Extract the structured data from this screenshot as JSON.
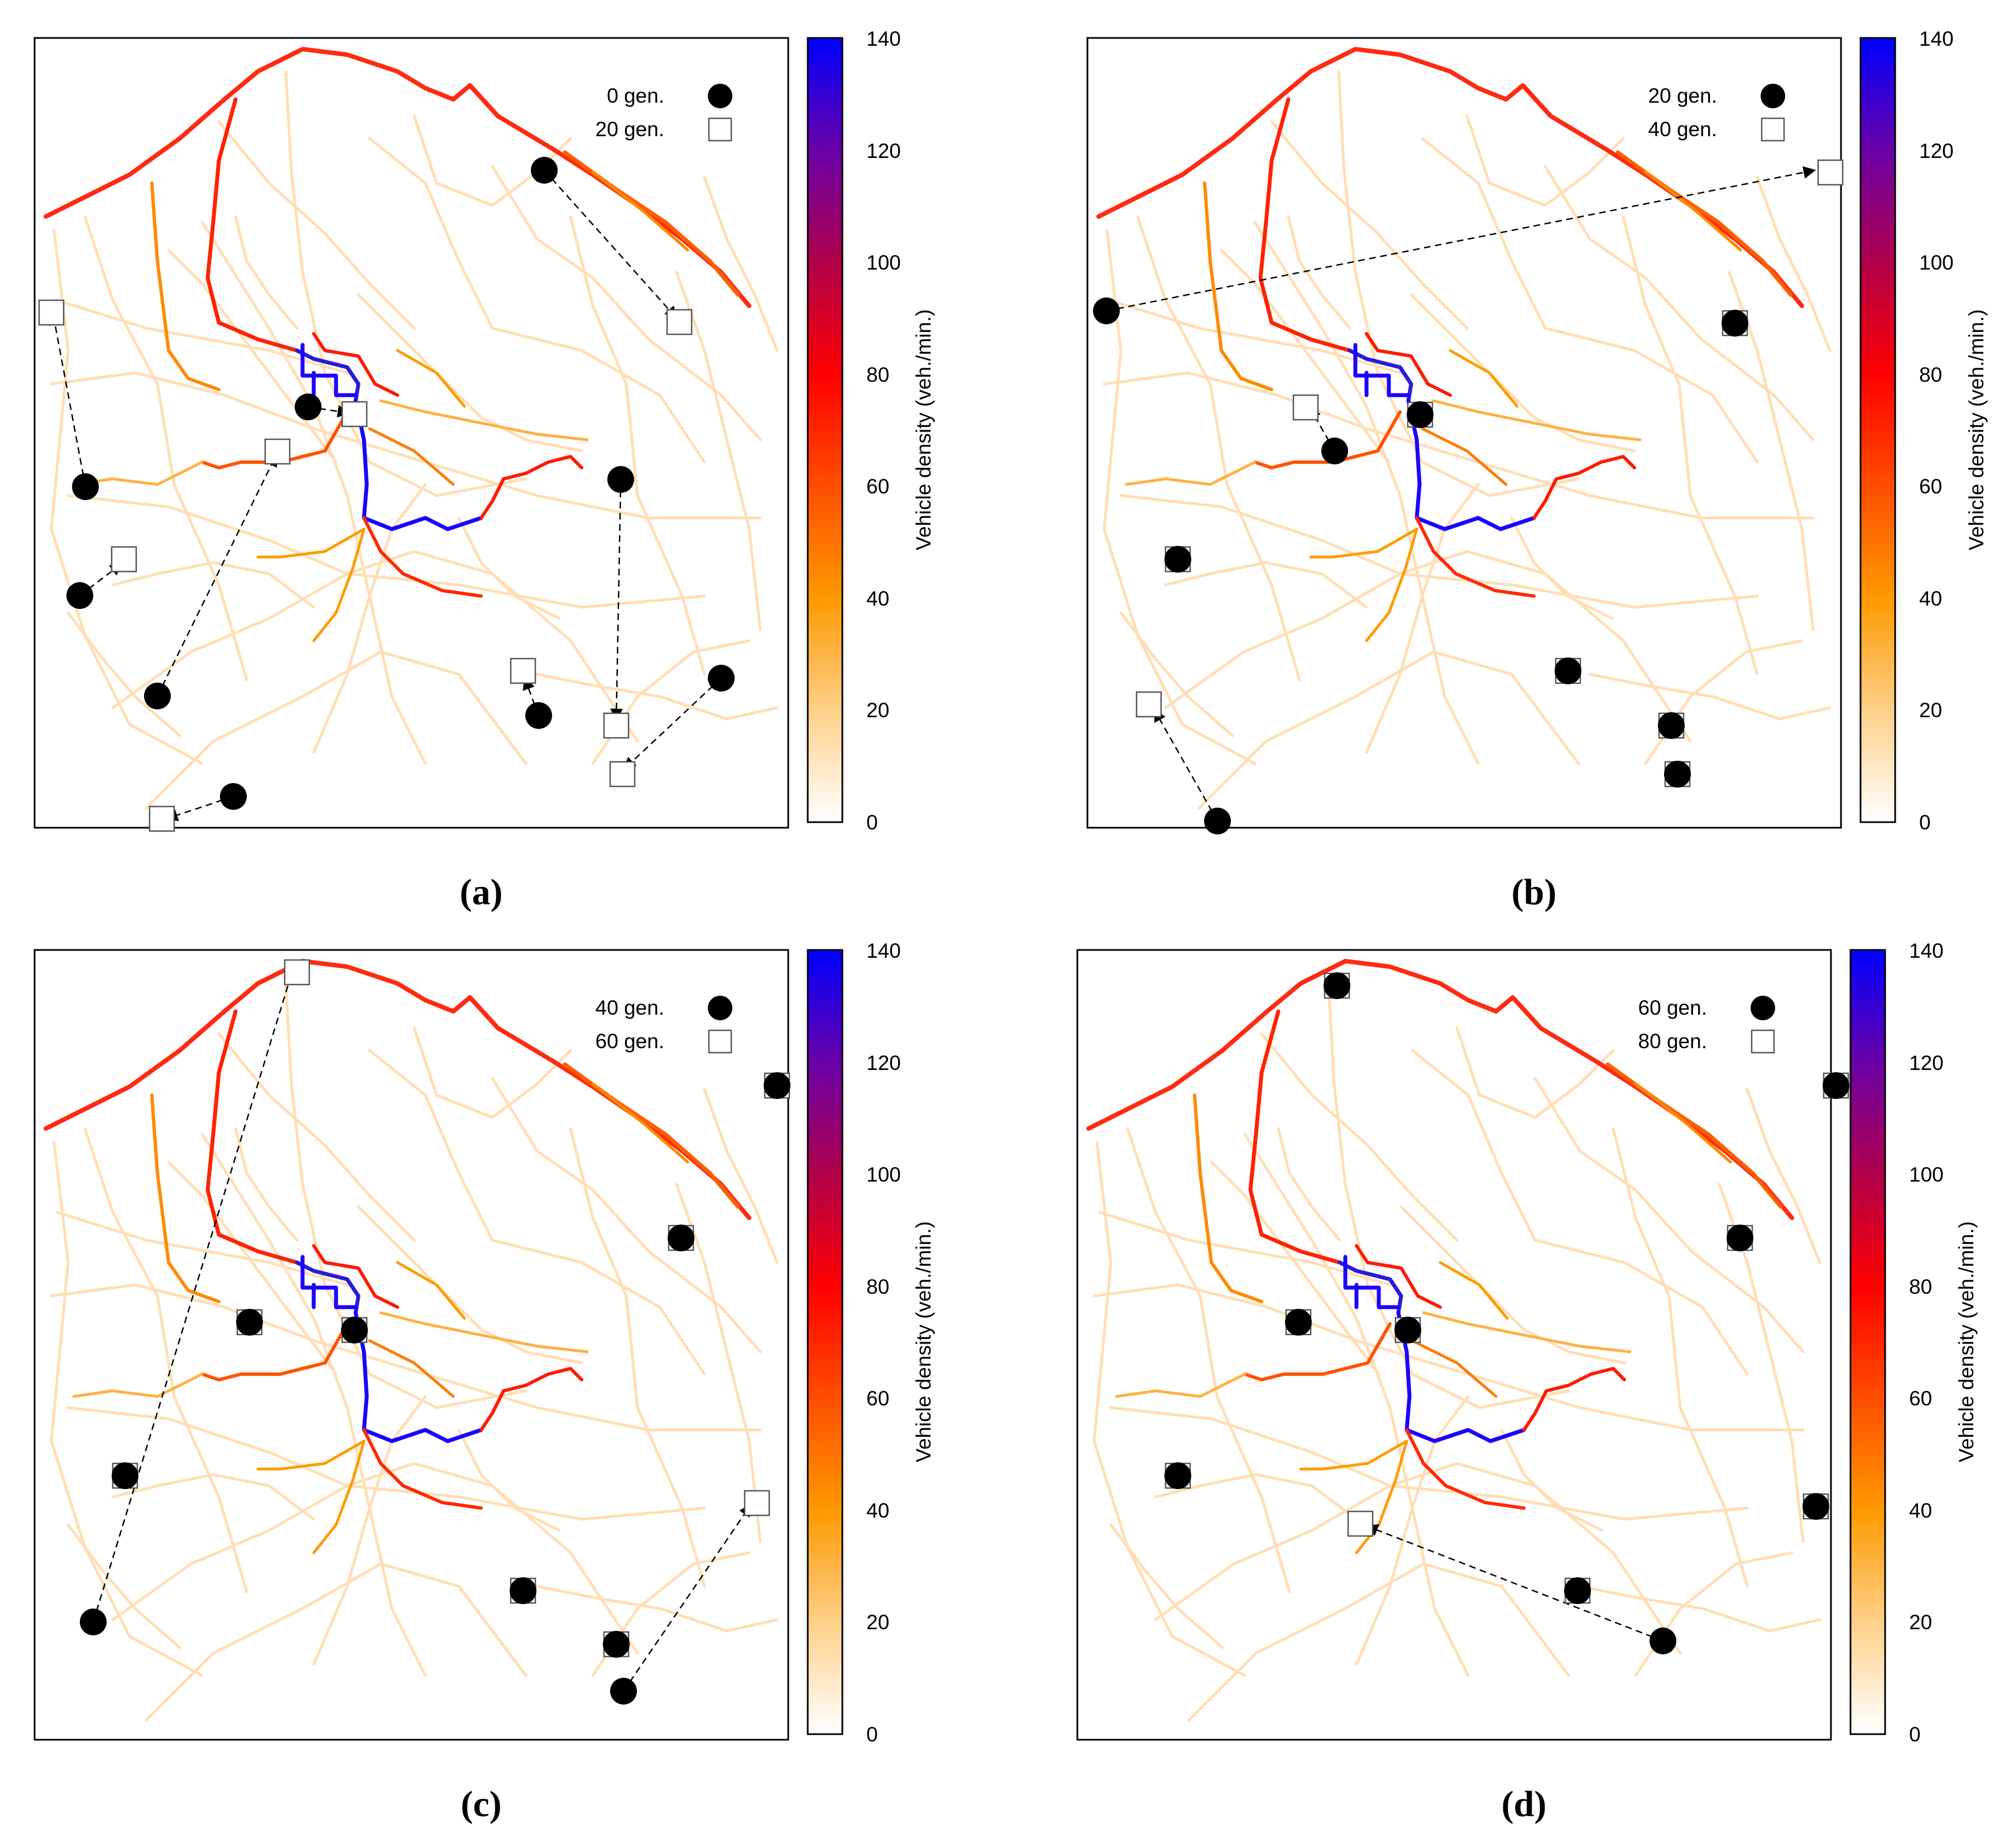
{
  "colorbar": {
    "title": "Vehicle density (veh./min.)",
    "ticks": [
      "0",
      "20",
      "40",
      "60",
      "80",
      "100",
      "120",
      "140"
    ],
    "range": [
      0,
      140
    ],
    "gradient": [
      {
        "value": 0,
        "color": "#ffffff"
      },
      {
        "value": 20,
        "color": "#ffd089"
      },
      {
        "value": 40,
        "color": "#ff9900"
      },
      {
        "value": 60,
        "color": "#ff4d00"
      },
      {
        "value": 80,
        "color": "#ff0000"
      },
      {
        "value": 100,
        "color": "#b0004a"
      },
      {
        "value": 120,
        "color": "#6a00a8"
      },
      {
        "value": 140,
        "color": "#0000ff"
      }
    ]
  },
  "panels": [
    {
      "caption": "(a)",
      "legend": {
        "circle_label": "0 gen.",
        "square_label": "20 gen."
      }
    },
    {
      "caption": "(b)",
      "legend": {
        "circle_label": "20 gen.",
        "square_label": "40 gen."
      }
    },
    {
      "caption": "(c)",
      "legend": {
        "circle_label": "40 gen.",
        "square_label": "60 gen."
      }
    },
    {
      "caption": "(d)",
      "legend": {
        "circle_label": "60 gen.",
        "square_label": "80 gen."
      }
    }
  ],
  "colors": {
    "high_density": "#0000ff",
    "mid_density": "#ff0000",
    "low_density": "#ff9900",
    "background_roads": "#ffd9a8",
    "markers": "#000000"
  }
}
